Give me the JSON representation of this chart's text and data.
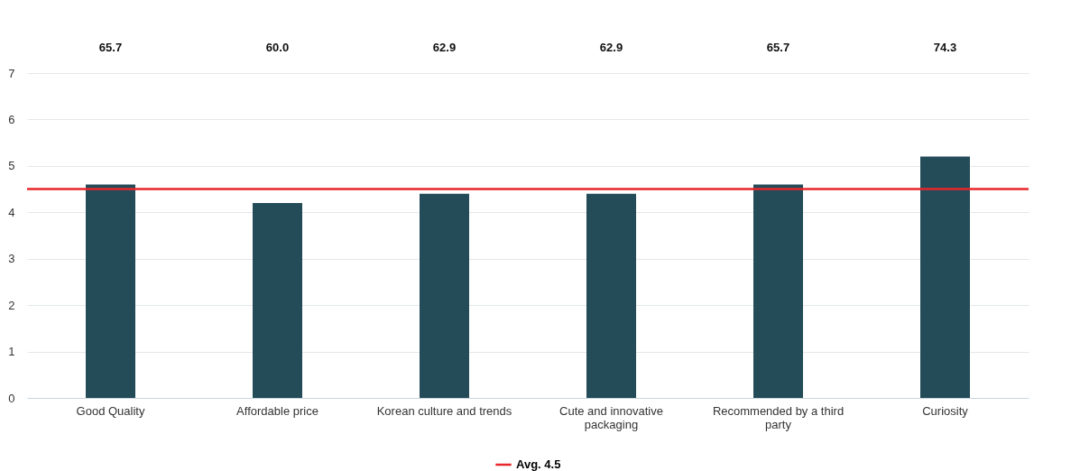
{
  "chart_data": {
    "type": "bar",
    "categories": [
      "Good Quality",
      "Affordable price",
      "Korean culture and trends",
      "Cute and innovative packaging",
      "Recommended by a third party",
      "Curiosity"
    ],
    "values": [
      4.6,
      4.2,
      4.4,
      4.4,
      4.6,
      5.2
    ],
    "annotations": [
      "65.7",
      "60.0",
      "62.9",
      "62.9",
      "65.7",
      "74.3"
    ],
    "color": "#234b58",
    "ylim": [
      0,
      7
    ],
    "yticks": [
      0,
      1,
      2,
      3,
      4,
      5,
      6,
      7
    ],
    "grid": "y",
    "ref_lines": [
      {
        "axis": "y",
        "value": 4.5,
        "label": "Avg. 4.5",
        "color": "#e8262b"
      }
    ],
    "legend": "bottom"
  }
}
